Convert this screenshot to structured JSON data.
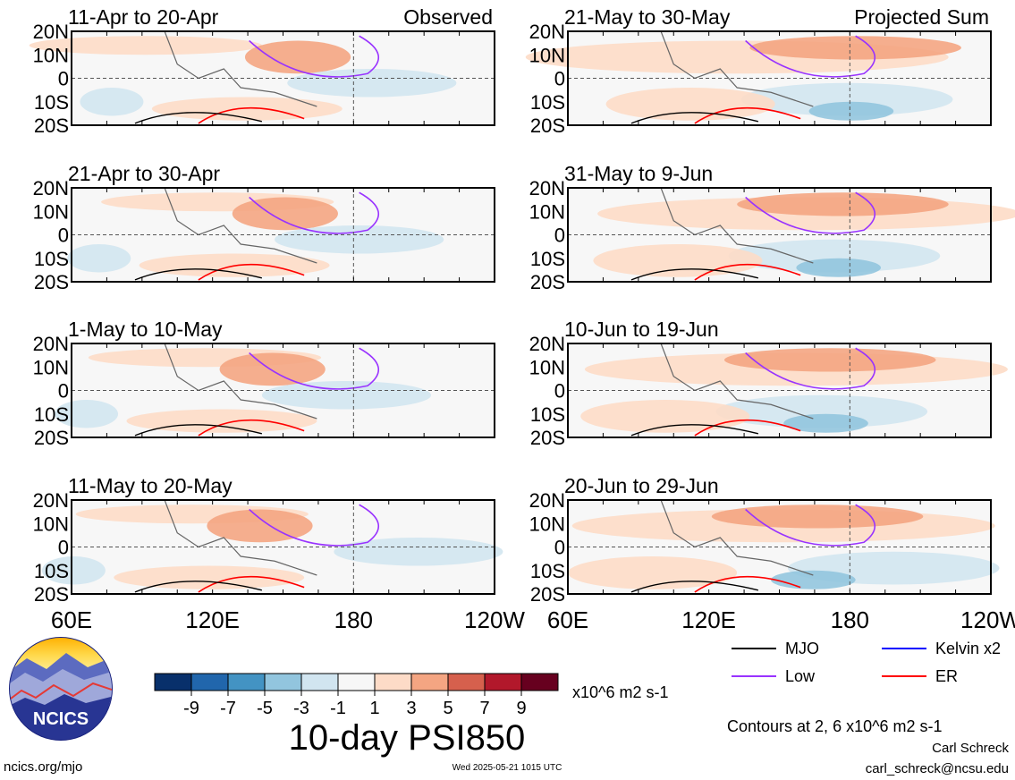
{
  "chart_data": {
    "type": "heatmap",
    "title": "10-day PSI850",
    "variable_units": "x10^6 m2 s-1",
    "x_ticks": [
      "60E",
      "120E",
      "180",
      "120W"
    ],
    "y_ticks": [
      "20N",
      "10N",
      "0",
      "10S",
      "20S"
    ],
    "columns": [
      {
        "header": "Observed",
        "panels": [
          "11-Apr to 20-Apr",
          "21-Apr to 30-Apr",
          "1-May to 10-May",
          "11-May to 20-May"
        ]
      },
      {
        "header": "Projected Sum",
        "panels": [
          "21-May to 30-May",
          "31-May to 9-Jun",
          "10-Jun to 19-Jun",
          "20-Jun to 29-Jun"
        ]
      }
    ],
    "colorbar": {
      "ticks": [
        "-9",
        "-7",
        "-5",
        "-3",
        "-1",
        "1",
        "3",
        "5",
        "7",
        "9"
      ],
      "colors": [
        "#08306b",
        "#2166ac",
        "#4393c3",
        "#92c5de",
        "#d1e5f0",
        "#f7f7f7",
        "#fddbc7",
        "#f4a582",
        "#d6604d",
        "#b2182b",
        "#67001f"
      ]
    },
    "legend": [
      {
        "label": "MJO",
        "color": "#000000"
      },
      {
        "label": "Kelvin x2",
        "color": "#0000ff"
      },
      {
        "label": "Low",
        "color": "#9933ff"
      },
      {
        "label": "ER",
        "color": "#ff0000"
      }
    ],
    "contour_note": "Contours at 2, 6 x10^6 m2 s-1"
  },
  "footer": {
    "logo_text": "NCICS",
    "url": "ncics.org/mjo",
    "timestamp": "Wed 2025-05-21 1015 UTC",
    "author": "Carl Schreck",
    "email": "carl_schreck@ncsu.edu"
  }
}
